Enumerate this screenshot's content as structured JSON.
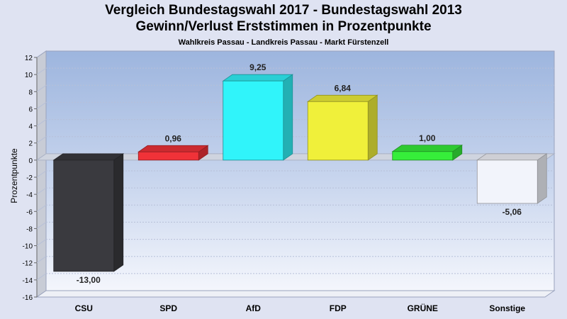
{
  "title": "Vergleich Bundestagswahl 2017 - Bundestagswahl 2013",
  "subtitle": "Gewinn/Verlust Erststimmen in Prozentpunkte",
  "caption": "Wahlkreis Passau - Landkreis Passau - Markt Fürstenzell",
  "chart_data": {
    "type": "bar",
    "title": "Vergleich Bundestagswahl 2017 - Bundestagswahl 2013",
    "subtitle": "Gewinn/Verlust Erststimmen in Prozentpunkte",
    "caption": "Wahlkreis Passau - Landkreis Passau - Markt Fürstenzell",
    "xlabel": "",
    "ylabel": "Prozentpunkte",
    "ylim": [
      -16,
      12
    ],
    "yticks": [
      12,
      10,
      8,
      6,
      4,
      2,
      0,
      -2,
      -4,
      -6,
      -8,
      -10,
      -12,
      -14,
      -16
    ],
    "categories": [
      "CSU",
      "SPD",
      "AfD",
      "FDP",
      "GRÜNE",
      "Sonstige"
    ],
    "values": [
      -13.0,
      0.96,
      9.25,
      6.84,
      1.0,
      -5.06
    ],
    "value_labels": [
      "-13,00",
      "0,96",
      "9,25",
      "6,84",
      "1,00",
      "-5,06"
    ],
    "colors": [
      "#3a3a3f",
      "#f03238",
      "#30f4fa",
      "#f0f03a",
      "#36ee3a",
      "#f2f4fb"
    ],
    "grid": true,
    "style": "3d"
  }
}
